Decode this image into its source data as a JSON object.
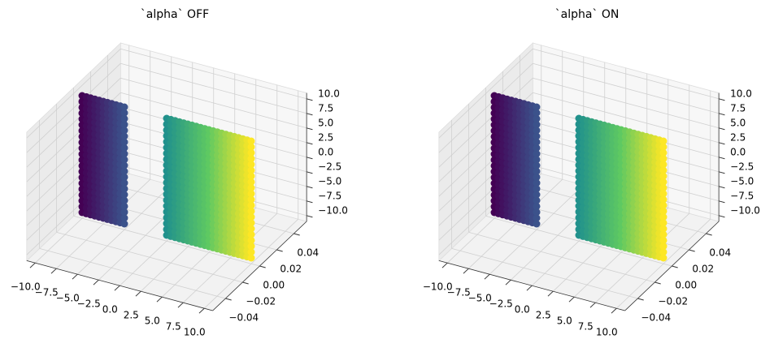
{
  "chart_data": [
    {
      "type": "scatter3d",
      "title": "`alpha` OFF",
      "x": [
        -10,
        -9.5,
        -9,
        -8.5,
        -8,
        -7.5,
        -7,
        -6.5,
        -6,
        -5.5,
        -5,
        0,
        0.5,
        1,
        1.5,
        2,
        2.5,
        3,
        3.5,
        4,
        4.5,
        5,
        5.5,
        6,
        6.5,
        7,
        7.5,
        8,
        8.5,
        9,
        9.5,
        10
      ],
      "y": 0,
      "z": [
        -10,
        -9,
        -8,
        -7,
        -6,
        -5,
        -4,
        -3,
        -2,
        -1,
        0,
        1,
        2,
        3,
        4,
        5,
        6,
        7,
        8,
        9,
        10
      ],
      "colormap": [
        "#440154",
        "#3b528b",
        "#21918c",
        "#5ec962",
        "#fde725"
      ],
      "xlim": [
        -11,
        11
      ],
      "ylim": [
        -0.055,
        0.055
      ],
      "zlim": [
        -11,
        11
      ],
      "xticks": [
        {
          "value": -10,
          "label": "−10.0"
        },
        {
          "value": -7.5,
          "label": "−7.5"
        },
        {
          "value": -5,
          "label": "−5.0"
        },
        {
          "value": -2.5,
          "label": "−2.5"
        },
        {
          "value": 0,
          "label": "0.0"
        },
        {
          "value": 2.5,
          "label": "2.5"
        },
        {
          "value": 5,
          "label": "5.0"
        },
        {
          "value": 7.5,
          "label": "7.5"
        },
        {
          "value": 10,
          "label": "10.0"
        }
      ],
      "yticks": [
        {
          "value": -0.04,
          "label": "−0.04"
        },
        {
          "value": -0.02,
          "label": "−0.02"
        },
        {
          "value": 0,
          "label": "0.00"
        },
        {
          "value": 0.02,
          "label": "0.02"
        },
        {
          "value": 0.04,
          "label": "0.04"
        }
      ],
      "zticks": [
        {
          "value": -10,
          "label": "−10.0"
        },
        {
          "value": -7.5,
          "label": "−7.5"
        },
        {
          "value": -5,
          "label": "−5.0"
        },
        {
          "value": -2.5,
          "label": "−2.5"
        },
        {
          "value": 0,
          "label": "0.0"
        },
        {
          "value": 2.5,
          "label": "2.5"
        },
        {
          "value": 5,
          "label": "5.0"
        },
        {
          "value": 7.5,
          "label": "7.5"
        },
        {
          "value": 10,
          "label": "10.0"
        }
      ],
      "grid": true
    },
    {
      "type": "scatter3d",
      "title": "`alpha` ON",
      "x": [
        -10,
        -9.5,
        -9,
        -8.5,
        -8,
        -7.5,
        -7,
        -6.5,
        -6,
        -5.5,
        -5,
        0,
        0.5,
        1,
        1.5,
        2,
        2.5,
        3,
        3.5,
        4,
        4.5,
        5,
        5.5,
        6,
        6.5,
        7,
        7.5,
        8,
        8.5,
        9,
        9.5,
        10
      ],
      "y": 0,
      "z": [
        -10,
        -9,
        -8,
        -7,
        -6,
        -5,
        -4,
        -3,
        -2,
        -1,
        0,
        1,
        2,
        3,
        4,
        5,
        6,
        7,
        8,
        9,
        10
      ],
      "colormap": [
        "#440154",
        "#3b528b",
        "#21918c",
        "#5ec962",
        "#fde725"
      ],
      "xlim": [
        -11,
        11
      ],
      "ylim": [
        -0.055,
        0.055
      ],
      "zlim": [
        -11,
        11
      ],
      "xticks": [
        {
          "value": -10,
          "label": "−10.0"
        },
        {
          "value": -7.5,
          "label": "−7.5"
        },
        {
          "value": -5,
          "label": "−5.0"
        },
        {
          "value": -2.5,
          "label": "−2.5"
        },
        {
          "value": 0,
          "label": "0.0"
        },
        {
          "value": 2.5,
          "label": "2.5"
        },
        {
          "value": 5,
          "label": "5.0"
        },
        {
          "value": 7.5,
          "label": "7.5"
        },
        {
          "value": 10,
          "label": "10.0"
        }
      ],
      "yticks": [
        {
          "value": -0.04,
          "label": "−0.04"
        },
        {
          "value": -0.02,
          "label": "−0.02"
        },
        {
          "value": 0,
          "label": "0.00"
        },
        {
          "value": 0.02,
          "label": "0.02"
        },
        {
          "value": 0.04,
          "label": "0.04"
        }
      ],
      "zticks": [
        {
          "value": -10,
          "label": "−10.0"
        },
        {
          "value": -7.5,
          "label": "−7.5"
        },
        {
          "value": -5,
          "label": "−5.0"
        },
        {
          "value": -2.5,
          "label": "−2.5"
        },
        {
          "value": 0,
          "label": "0.0"
        },
        {
          "value": 2.5,
          "label": "2.5"
        },
        {
          "value": 5,
          "label": "5.0"
        },
        {
          "value": 7.5,
          "label": "7.5"
        },
        {
          "value": 10,
          "label": "10.0"
        }
      ],
      "grid": true
    }
  ]
}
